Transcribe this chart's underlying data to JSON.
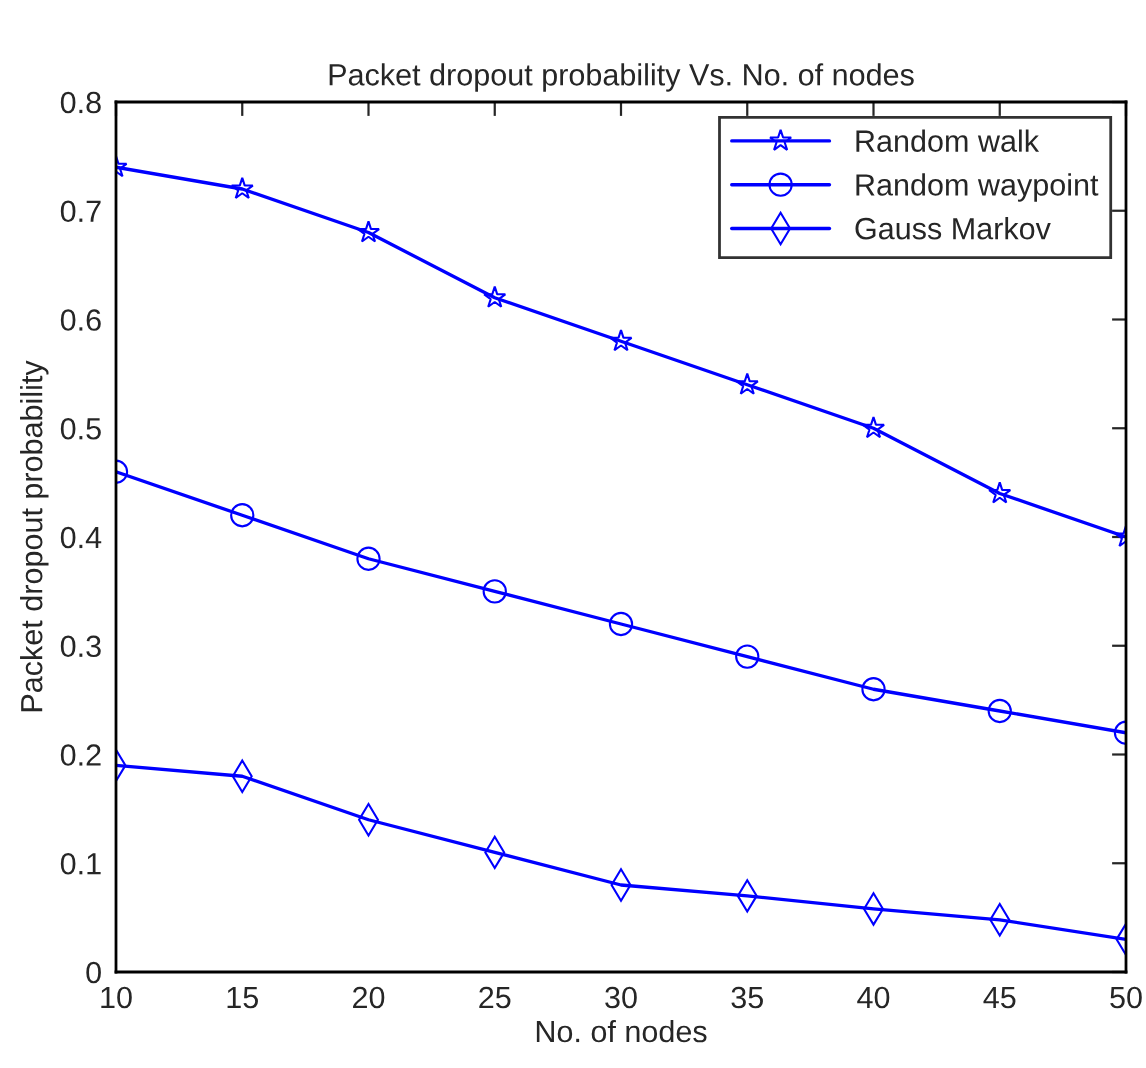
{
  "chart_data": {
    "type": "line",
    "title": "Packet dropout probability Vs. No. of nodes",
    "xlabel": "No. of nodes",
    "ylabel": "Packet dropout probability",
    "x": [
      10,
      15,
      20,
      25,
      30,
      35,
      40,
      45,
      50
    ],
    "series": [
      {
        "name": "Random walk",
        "color": "#0000ff",
        "marker": "star",
        "values": [
          0.74,
          0.72,
          0.68,
          0.62,
          0.58,
          0.54,
          0.5,
          0.44,
          0.4
        ]
      },
      {
        "name": "Random waypoint",
        "color": "#0000ff",
        "marker": "circle",
        "values": [
          0.46,
          0.42,
          0.38,
          0.35,
          0.32,
          0.29,
          0.26,
          0.24,
          0.22
        ]
      },
      {
        "name": "Gauss Markov",
        "color": "#0000ff",
        "marker": "diamond",
        "values": [
          0.19,
          0.18,
          0.14,
          0.11,
          0.08,
          0.07,
          0.058,
          0.048,
          0.03
        ]
      }
    ],
    "xlim": [
      10,
      50
    ],
    "xticks": [
      10,
      15,
      20,
      25,
      30,
      35,
      40,
      45,
      50
    ],
    "ylim": [
      0,
      0.8
    ],
    "yticks": [
      0,
      0.1,
      0.2,
      0.3,
      0.4,
      0.5,
      0.6,
      0.7,
      0.8
    ],
    "grid": false,
    "legend": "top right",
    "line_style": "solid"
  }
}
